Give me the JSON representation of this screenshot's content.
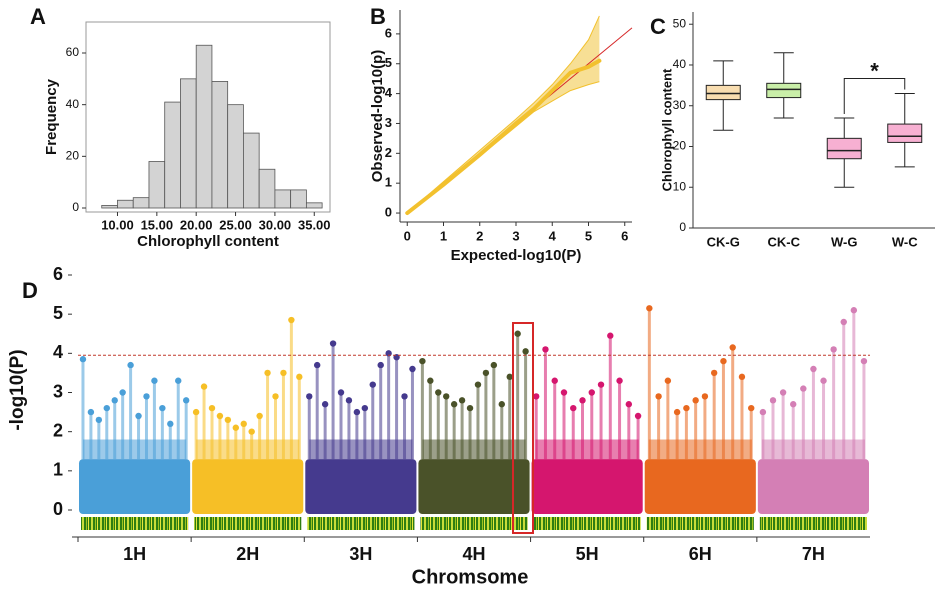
{
  "chart_data": [
    {
      "type": "histogram",
      "panel_label": "A",
      "x_label": "Chlorophyll content",
      "y_label": "Frequency",
      "bins": [
        8,
        10,
        12,
        14,
        16,
        18,
        20,
        22,
        24,
        26,
        28,
        30,
        32,
        34,
        36
      ],
      "values": [
        1,
        3,
        4,
        18,
        41,
        50,
        63,
        49,
        40,
        29,
        15,
        7,
        7,
        2
      ],
      "color": "#d3d3d3",
      "xlim": [
        6,
        37
      ],
      "ylim": [
        0,
        72
      ],
      "xticks": [
        {
          "value": 10,
          "label": "10.00"
        },
        {
          "value": 15,
          "label": "15.00"
        },
        {
          "value": 20,
          "label": "20.00"
        },
        {
          "value": 25,
          "label": "25.00"
        },
        {
          "value": 30,
          "label": "30.00"
        },
        {
          "value": 35,
          "label": "35.00"
        }
      ],
      "yticks": [
        0,
        20,
        40,
        60
      ]
    },
    {
      "type": "qq",
      "panel_label": "B",
      "x_label": "Expected-log10(P)",
      "y_label": "Observed-log10(p)",
      "x": [
        0,
        1,
        2,
        3,
        3.5,
        4,
        4.5,
        5,
        5.3
      ],
      "values": [
        0,
        0.95,
        1.95,
        3.0,
        3.5,
        4.1,
        4.7,
        4.9,
        5.1
      ],
      "upper": [
        0,
        1.05,
        2.1,
        3.15,
        3.7,
        4.3,
        5.0,
        5.8,
        6.6
      ],
      "lower": [
        0,
        0.95,
        1.9,
        2.9,
        3.4,
        3.75,
        4.1,
        4.3,
        4.4
      ],
      "color": "#f2c12e",
      "band_color": "#f5d77a",
      "line_color": "#d62728",
      "xlim": [
        -0.2,
        6.2
      ],
      "ylim": [
        -0.3,
        6.8
      ],
      "xticks": [
        0,
        1,
        2,
        3,
        4,
        5,
        6
      ],
      "yticks": [
        0,
        1,
        2,
        3,
        4,
        5,
        6
      ]
    },
    {
      "type": "box",
      "panel_label": "C",
      "y_label": "Chlorophyll content",
      "categories": [
        "CK-G",
        "CK-C",
        "W-G",
        "W-C"
      ],
      "min": [
        24,
        27,
        10,
        15
      ],
      "q1": [
        31.5,
        32,
        17,
        21
      ],
      "median": [
        33,
        34,
        19,
        22.5
      ],
      "q3": [
        35,
        35.5,
        22,
        25.5
      ],
      "max": [
        41,
        43,
        27,
        33
      ],
      "colors": [
        "#f8ddb0",
        "#c9eea8",
        "#f7b0d2",
        "#f7b0d2"
      ],
      "annotation": "*",
      "ylim": [
        0,
        53
      ],
      "yticks": [
        0,
        10,
        20,
        30,
        40,
        50
      ]
    },
    {
      "type": "manhattan",
      "panel_label": "D",
      "x_label": "Chromsome",
      "y_label": "-log10(P)",
      "threshold": 3.95,
      "series": [
        {
          "name": "1H",
          "color": "#4a9fd8",
          "values": [
            3.85,
            2.5,
            2.3,
            2.6,
            2.8,
            3.0,
            3.7,
            2.4,
            2.9,
            3.3,
            2.6,
            2.2,
            3.3,
            2.8
          ]
        },
        {
          "name": "2H",
          "color": "#f6bf26",
          "values": [
            2.5,
            3.15,
            2.6,
            2.4,
            2.3,
            2.1,
            2.2,
            2.0,
            2.4,
            3.5,
            2.9,
            3.5,
            4.85,
            3.4
          ]
        },
        {
          "name": "3H",
          "color": "#453a8e",
          "values": [
            2.9,
            3.7,
            2.7,
            4.25,
            3.0,
            2.8,
            2.5,
            2.6,
            3.2,
            3.7,
            4.0,
            3.9,
            2.9,
            3.6
          ]
        },
        {
          "name": "4H",
          "color": "#4a5229",
          "values": [
            3.8,
            3.3,
            3.0,
            2.9,
            2.7,
            2.8,
            2.6,
            3.2,
            3.5,
            3.7,
            2.7,
            3.4,
            4.5,
            4.05
          ]
        },
        {
          "name": "5H",
          "color": "#d5166e",
          "values": [
            2.9,
            4.1,
            3.3,
            3.0,
            2.6,
            2.8,
            3.0,
            3.2,
            4.45,
            3.3,
            2.7,
            2.4
          ]
        },
        {
          "name": "6H",
          "color": "#e8681f",
          "values": [
            5.15,
            2.9,
            3.3,
            2.5,
            2.6,
            2.8,
            2.9,
            3.5,
            3.8,
            4.15,
            3.4,
            2.6
          ]
        },
        {
          "name": "7H",
          "color": "#d47fb5",
          "values": [
            2.5,
            2.8,
            3.0,
            2.7,
            3.1,
            3.6,
            3.3,
            4.1,
            4.8,
            5.1,
            3.8
          ]
        }
      ],
      "ylim": [
        0,
        6
      ],
      "yticks": [
        0,
        1,
        2,
        3,
        4,
        5,
        6
      ]
    }
  ]
}
